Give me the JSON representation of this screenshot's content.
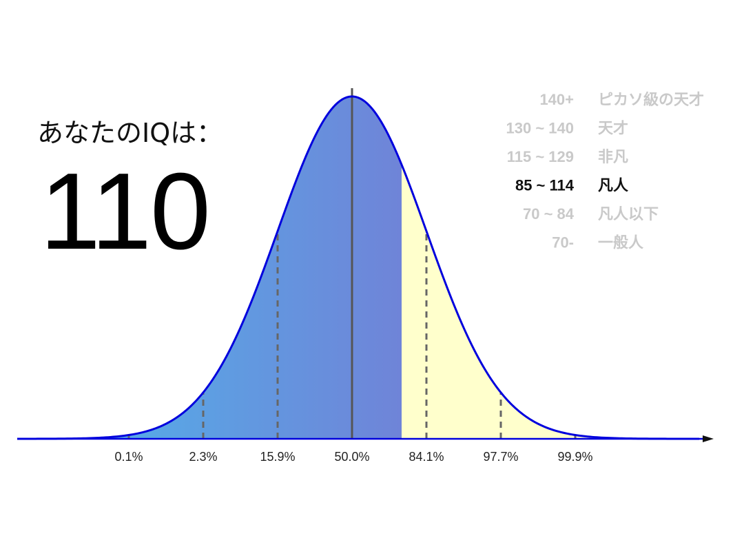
{
  "result": {
    "prompt": "あなたのIQは：",
    "score": "110",
    "score_value": 110
  },
  "chart_data": {
    "type": "area",
    "distribution": "normal",
    "mean": 100,
    "sd": 15,
    "xlim": [
      32.5,
      170
    ],
    "highlight_upto": 110,
    "dashed_lines": [
      55,
      70,
      85,
      115,
      130,
      145
    ],
    "mean_line": 100,
    "tick_positions": [
      55,
      70,
      85,
      100,
      115,
      130,
      145
    ],
    "tick_labels": [
      "0.1%",
      "2.3%",
      "15.9%",
      "50.0%",
      "84.1%",
      "97.7%",
      "99.9%"
    ],
    "colors": {
      "gradient_start": "#4db8ec",
      "gradient_end": "#6f84d8",
      "tail_fill": "#ffffcc",
      "curve_stroke": "#0000dd",
      "mean_line": "#555555",
      "dashed_line": "#666666",
      "axis": "#0000dd"
    },
    "legend": [
      {
        "range": "140+",
        "label": "ピカソ級の天才",
        "active": false
      },
      {
        "range": "130 ~ 140",
        "label": "天才",
        "active": false
      },
      {
        "range": "115 ~ 129",
        "label": "非凡",
        "active": false
      },
      {
        "range": "85 ~ 114",
        "label": "凡人",
        "active": true
      },
      {
        "range": "70 ~ 84",
        "label": "凡人以下",
        "active": false
      },
      {
        "range": "70-",
        "label": "一般人",
        "active": false
      }
    ]
  }
}
